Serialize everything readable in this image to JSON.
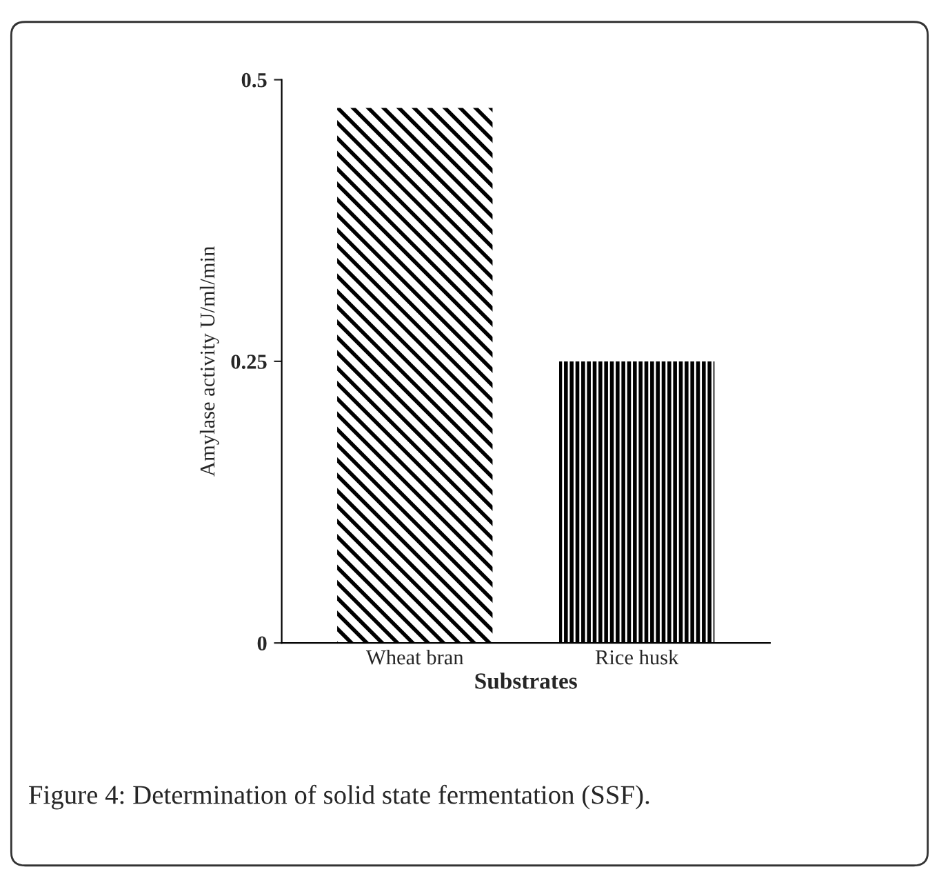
{
  "chart_data": {
    "type": "bar",
    "categories": [
      "Wheat bran",
      "Rice husk"
    ],
    "values": [
      0.475,
      0.25
    ],
    "colors": [
      "#000000",
      "#000000"
    ],
    "ylim": [
      0,
      0.5
    ],
    "yticks": [
      0,
      0.25,
      0.5
    ],
    "xlabel": "Substrates",
    "ylabel": "Amylase activity U/ml/min",
    "grid": false,
    "annotations": [
      "Figure 4: Determination of solid state fermentation (SSF)."
    ]
  }
}
